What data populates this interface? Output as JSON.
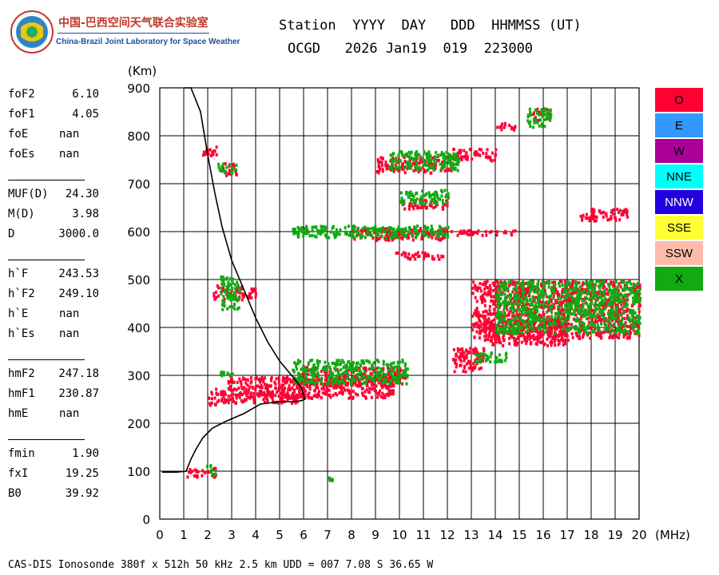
{
  "logo": {
    "cn": "中国-巴西空间天气联合实验室",
    "en": "China-Brazil Joint Laboratory for Space Weather"
  },
  "header": {
    "labels": "Station  YYYY  DAY   DDD  HHMMSS (UT)",
    "values": "OCGD   2026 Jan19  019  223000"
  },
  "params": [
    {
      "name": "foF2",
      "value": "6.10"
    },
    {
      "name": "foF1",
      "value": "4.05"
    },
    {
      "name": "foE",
      "value": "nan"
    },
    {
      "name": "foEs",
      "value": "nan"
    },
    {
      "name": "MUF(D)",
      "value": "24.30"
    },
    {
      "name": "M(D)",
      "value": "3.98"
    },
    {
      "name": "D",
      "value": "3000.0"
    },
    {
      "name": "h`F",
      "value": "243.53"
    },
    {
      "name": "h`F2",
      "value": "249.10"
    },
    {
      "name": "h`E",
      "value": "nan"
    },
    {
      "name": "h`Es",
      "value": "nan"
    },
    {
      "name": "hmF2",
      "value": "247.18"
    },
    {
      "name": "hmF1",
      "value": "230.87"
    },
    {
      "name": "hmE",
      "value": "nan"
    },
    {
      "name": "fmin",
      "value": "1.90"
    },
    {
      "name": "fxI",
      "value": "19.25"
    },
    {
      "name": "B0",
      "value": "39.92"
    }
  ],
  "legend": [
    {
      "label": "O",
      "color": "#ff0033"
    },
    {
      "label": "E",
      "color": "#3399ff"
    },
    {
      "label": "W",
      "color": "#aa0099"
    },
    {
      "label": "NNE",
      "color": "#00ffff"
    },
    {
      "label": "NNW",
      "color": "#2200dd"
    },
    {
      "label": "SSE",
      "color": "#ffff33"
    },
    {
      "label": "SSW",
      "color": "#ffbbaa"
    },
    {
      "label": "X",
      "color": "#11aa11"
    }
  ],
  "footer": "CAS-DIS Ionosonde 380f x 512h 50 kHz 2.5 km UDD = 007 7.08 S 36.65 W",
  "chart_data": {
    "type": "scatter",
    "xlabel": "(MHz)",
    "ylabel": "(Km)",
    "xlim": [
      0,
      20
    ],
    "ylim": [
      0,
      900
    ],
    "x_ticks": [
      0,
      1,
      2,
      3,
      4,
      5,
      6,
      7,
      8,
      9,
      10,
      11,
      12,
      13,
      14,
      15,
      16,
      17,
      18,
      19,
      20
    ],
    "y_ticks": [
      0,
      100,
      200,
      300,
      400,
      500,
      600,
      700,
      800,
      900
    ],
    "grid": true,
    "profile": {
      "color": "#000000",
      "x": [
        0.1,
        0.7,
        1.1,
        1.3,
        1.5,
        1.8,
        2.2,
        2.8,
        3.5,
        4.2,
        5.0,
        5.5,
        5.9,
        6.05,
        5.9,
        5.5,
        5.0,
        4.5,
        4.0,
        3.5,
        3.0,
        2.6,
        2.3,
        2.0,
        1.7,
        1.3,
        1.0
      ],
      "y": [
        98,
        98,
        100,
        125,
        145,
        170,
        190,
        205,
        220,
        240,
        245,
        245,
        247,
        250,
        275,
        300,
        330,
        370,
        420,
        480,
        540,
        610,
        680,
        760,
        850,
        900,
        900
      ]
    },
    "series": [
      {
        "name": "O",
        "color": "#ff0033",
        "bands": [
          {
            "x": [
              1.1,
              2.3
            ],
            "y": [
              90,
              110
            ]
          },
          {
            "x": [
              1.7,
              2.4
            ],
            "y": [
              760,
              780
            ]
          },
          {
            "x": [
              2.0,
              2.4
            ],
            "y": [
              240,
              275
            ]
          },
          {
            "x": [
              2.4,
              6.0
            ],
            "y": [
              245,
              270
            ]
          },
          {
            "x": [
              2.8,
              9.8
            ],
            "y": [
              255,
              300
            ]
          },
          {
            "x": [
              5.8,
              10.2
            ],
            "y": [
              280,
              320
            ]
          },
          {
            "x": [
              2.2,
              4.0
            ],
            "y": [
              460,
              490
            ]
          },
          {
            "x": [
              12.2,
              13.5
            ],
            "y": [
              310,
              360
            ]
          },
          {
            "x": [
              13.0,
              20.0
            ],
            "y": [
              380,
              500
            ]
          },
          {
            "x": [
              13.5,
              17.0
            ],
            "y": [
              365,
              420
            ]
          },
          {
            "x": [
              8.0,
              12.0
            ],
            "y": [
              585,
              610
            ]
          },
          {
            "x": [
              12.0,
              14.8
            ],
            "y": [
              595,
              605
            ]
          },
          {
            "x": [
              10.0,
              12.0
            ],
            "y": [
              650,
              670
            ]
          },
          {
            "x": [
              9.8,
              11.8
            ],
            "y": [
              545,
              560
            ]
          },
          {
            "x": [
              9.0,
              12.2
            ],
            "y": [
              725,
              760
            ]
          },
          {
            "x": [
              12.2,
              14.0
            ],
            "y": [
              750,
              775
            ]
          },
          {
            "x": [
              2.6,
              3.2
            ],
            "y": [
              720,
              745
            ]
          },
          {
            "x": [
              17.5,
              19.5
            ],
            "y": [
              625,
              650
            ]
          },
          {
            "x": [
              15.5,
              16.2
            ],
            "y": [
              835,
              860
            ]
          },
          {
            "x": [
              14.0,
              14.8
            ],
            "y": [
              815,
              830
            ]
          }
        ]
      },
      {
        "name": "X",
        "color": "#11aa11",
        "bands": [
          {
            "x": [
              1.9,
              2.3
            ],
            "y": [
              95,
              115
            ]
          },
          {
            "x": [
              2.4,
              3.2
            ],
            "y": [
              725,
              745
            ]
          },
          {
            "x": [
              2.5,
              3.3
            ],
            "y": [
              440,
              510
            ]
          },
          {
            "x": [
              2.3,
              3.0
            ],
            "y": [
              300,
              310
            ]
          },
          {
            "x": [
              5.5,
              10.3
            ],
            "y": [
              285,
              335
            ]
          },
          {
            "x": [
              13.0,
              14.5
            ],
            "y": [
              330,
              350
            ]
          },
          {
            "x": [
              14.0,
              20.0
            ],
            "y": [
              390,
              500
            ]
          },
          {
            "x": [
              5.5,
              12.0
            ],
            "y": [
              590,
              615
            ]
          },
          {
            "x": [
              10.0,
              12.0
            ],
            "y": [
              660,
              690
            ]
          },
          {
            "x": [
              9.5,
              12.5
            ],
            "y": [
              730,
              770
            ]
          },
          {
            "x": [
              15.3,
              16.3
            ],
            "y": [
              820,
              860
            ]
          },
          {
            "x": [
              7.0,
              7.2
            ],
            "y": [
              80,
              90
            ]
          }
        ]
      }
    ]
  }
}
